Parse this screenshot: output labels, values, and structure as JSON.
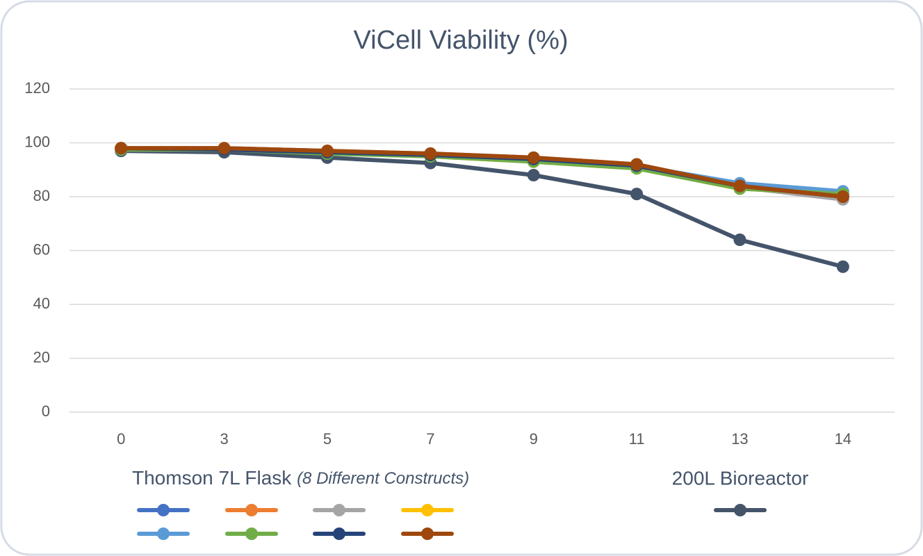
{
  "chart_data": {
    "type": "line",
    "title": "ViCell Viability (%)",
    "categories": [
      "0",
      "3",
      "5",
      "7",
      "9",
      "11",
      "13",
      "14"
    ],
    "ylim": [
      0,
      120
    ],
    "yticks": [
      0,
      20,
      40,
      60,
      80,
      100,
      120
    ],
    "grid": true,
    "legend_title": "Thomson 7L Flask",
    "legend_note": "(8 Different Constructs)",
    "series": [
      {
        "color": "#4472c4",
        "values": [
          98,
          98,
          97,
          95.5,
          94,
          91.5,
          84,
          80.5
        ]
      },
      {
        "color": "#ed7d31",
        "values": [
          98,
          98,
          97,
          96,
          94.5,
          92,
          84,
          80
        ]
      },
      {
        "color": "#a5a5a5",
        "values": [
          97.5,
          97.5,
          96.5,
          95.5,
          94,
          91.5,
          83.5,
          79
        ]
      },
      {
        "color": "#ffc000",
        "values": [
          98,
          97.5,
          96.5,
          95,
          93,
          90.5,
          83,
          81
        ]
      },
      {
        "color": "#5b9bd5",
        "values": [
          97.5,
          97.5,
          96.5,
          95.5,
          94,
          91.5,
          85,
          82
        ]
      },
      {
        "color": "#70ad47",
        "values": [
          97.5,
          97.5,
          96,
          95,
          93,
          90.5,
          83,
          81
        ]
      },
      {
        "color": "#264478",
        "values": [
          98,
          97.5,
          96.5,
          95.5,
          94,
          91.5,
          84,
          80
        ]
      },
      {
        "color": "#9e480e",
        "values": [
          98,
          98,
          97,
          96,
          94.5,
          92,
          84,
          80
        ]
      },
      {
        "name": "200L Bioreactor",
        "color": "#44546a",
        "values": [
          97,
          96.5,
          94.5,
          92.5,
          88,
          81,
          64,
          54
        ]
      }
    ]
  }
}
